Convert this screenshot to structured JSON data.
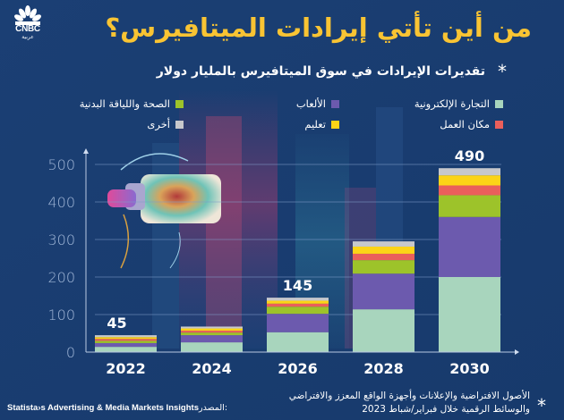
{
  "brand": {
    "logo_text": "CNBC",
    "logo_sub": "عربية"
  },
  "header": {
    "title": "من أين تأتي إيرادات الميتافيرس؟",
    "subtitle": "تقديرات الإيرادات في سوق الميتافيرس بالمليار دولار",
    "subtitle_marker": "*"
  },
  "colors": {
    "background": "#1a3d72",
    "title": "#f9c433",
    "ecommerce": "#a8d5bd",
    "gaming": "#6c5aae",
    "health_fitness": "#9dc32a",
    "workplace": "#ea5f5b",
    "education": "#fcd417",
    "other": "#c7c8cc"
  },
  "legend": [
    {
      "key": "ecommerce",
      "label": "التجارة الإلكترونية"
    },
    {
      "key": "gaming",
      "label": "الألعاب"
    },
    {
      "key": "health_fitness",
      "label": "الصحة واللياقة البدنية"
    },
    {
      "key": "workplace",
      "label": "مكان العمل"
    },
    {
      "key": "education",
      "label": "تعليم"
    },
    {
      "key": "other",
      "label": "أخرى"
    }
  ],
  "chart_data": {
    "type": "bar",
    "stacked": true,
    "title": "من أين تأتي إيرادات الميتافيرس؟",
    "subtitle": "تقديرات الإيرادات في سوق الميتافيرس بالمليار دولار",
    "xlabel": "",
    "ylabel": "",
    "unit": "billion USD",
    "categories": [
      "2022",
      "2024",
      "2026",
      "2028",
      "2030"
    ],
    "yticks": [
      "0",
      "100",
      "200",
      "300",
      "400",
      "500"
    ],
    "ylim": [
      0,
      500
    ],
    "grid": true,
    "legend_position": "top",
    "series": [
      {
        "key": "ecommerce",
        "name": "التجارة الإلكترونية",
        "values": [
          14,
          26,
          53,
          114,
          200
        ]
      },
      {
        "key": "gaming",
        "name": "الألعاب",
        "values": [
          10,
          19,
          49,
          95,
          160
        ]
      },
      {
        "key": "health_fitness",
        "name": "الصحة واللياقة البدنية",
        "values": [
          6,
          7,
          19,
          36,
          58
        ]
      },
      {
        "key": "workplace",
        "name": "مكان العمل",
        "values": [
          5,
          5,
          8,
          17,
          26
        ]
      },
      {
        "key": "education",
        "name": "تعليم",
        "values": [
          5,
          6,
          8,
          19,
          27
        ]
      },
      {
        "key": "other",
        "name": "أخرى",
        "values": [
          5,
          5,
          8,
          14,
          19
        ]
      }
    ],
    "totals_labels": [
      {
        "category": "2022",
        "label": "45"
      },
      {
        "category": "2026",
        "label": "145"
      },
      {
        "category": "2030",
        "label": "490"
      }
    ]
  },
  "footnote": {
    "marker": "*",
    "line1": "الأصول الافتراضية والإعلانات وأجهزة الواقع المعزز والافتراضي",
    "line2": "والوسائط الرقمية خلال فبراير/شباط 2023"
  },
  "source": {
    "label": "المصدر:",
    "text": "Statista›s Advertising & Media Markets Insights"
  }
}
